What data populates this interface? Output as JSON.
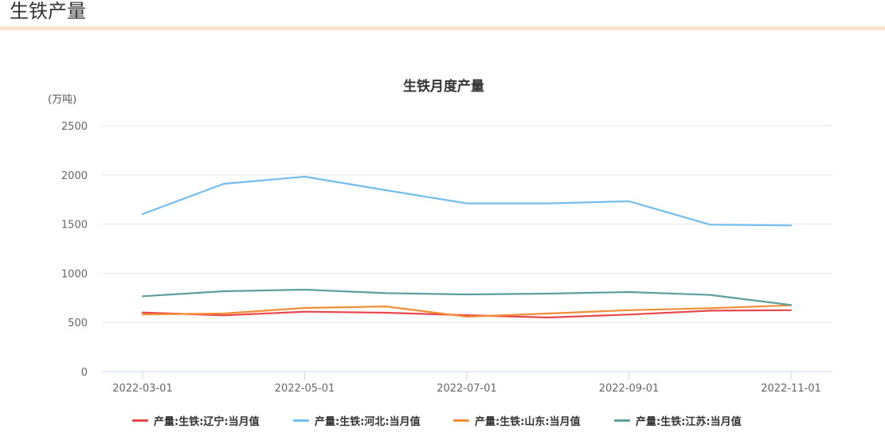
{
  "page": {
    "title": "生铁产量",
    "accent_bar_color": "#fde3d2"
  },
  "chart_data": {
    "type": "line",
    "title": "生铁月度产量",
    "xlabel": "",
    "ylabel": "(万吨)",
    "ylim": [
      0,
      2500
    ],
    "yticks": [
      0,
      500,
      1000,
      1500,
      2000,
      2500
    ],
    "x": [
      "2022-03-01",
      "2022-04-01",
      "2022-05-01",
      "2022-06-01",
      "2022-07-01",
      "2022-08-01",
      "2022-09-01",
      "2022-10-01",
      "2022-11-01"
    ],
    "xtick_labels": [
      "2022-03-01",
      "2022-05-01",
      "2022-07-01",
      "2022-09-01",
      "2022-11-01"
    ],
    "grid": true,
    "legend_position": "bottom",
    "series": [
      {
        "name": "产量:生铁:辽宁:当月值",
        "color": "#e8474b",
        "values": [
          601,
          572,
          609,
          599,
          574,
          550,
          580,
          620,
          625
        ]
      },
      {
        "name": "产量:生铁:河北:当月值",
        "color": "#74bdf0",
        "values": [
          1602,
          1909,
          1982,
          1845,
          1710,
          1710,
          1732,
          1494,
          1486
        ]
      },
      {
        "name": "产量:生铁:山东:当月值",
        "color": "#f28e36",
        "values": [
          582,
          591,
          647,
          663,
          558,
          591,
          625,
          645,
          674
        ]
      },
      {
        "name": "产量:生铁:江苏:当月值",
        "color": "#5d9ea0",
        "values": [
          766,
          817,
          833,
          798,
          785,
          793,
          809,
          780,
          677
        ]
      }
    ]
  }
}
